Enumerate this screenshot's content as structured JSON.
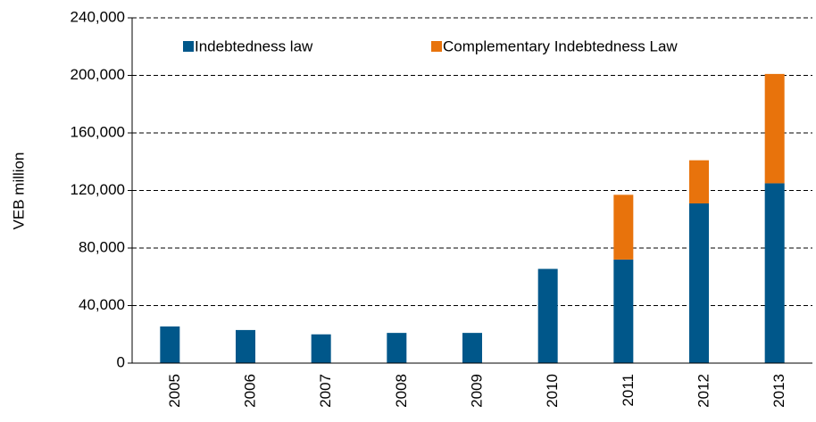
{
  "chart_data": {
    "type": "stacked_bar",
    "y_label": "VEB million",
    "categories": [
      "2005",
      "2006",
      "2007",
      "2008",
      "2009",
      "2010",
      "2011",
      "2012",
      "2013"
    ],
    "series": [
      {
        "name": "Indebtedness law",
        "color": "#00578a",
        "values": [
          25500,
          23000,
          20000,
          21000,
          21000,
          65500,
          72000,
          111000,
          125000
        ]
      },
      {
        "name": "Complementary Indebtedness Law",
        "color": "#e8730c",
        "values": [
          null,
          null,
          null,
          null,
          null,
          null,
          45000,
          30000,
          76000
        ]
      }
    ],
    "ylim": [
      0,
      240000
    ],
    "yticks": [
      0,
      {
        "value": 40000,
        "label": "40,000"
      },
      {
        "value": 80000,
        "label": "80,000"
      },
      {
        "value": 120000,
        "label": "120,000"
      },
      {
        "value": 160000,
        "label": "160,000"
      },
      {
        "value": 200000,
        "label": "200,000"
      },
      {
        "value": 240000,
        "label": "240,000"
      }
    ],
    "grid": true,
    "legend": "top"
  }
}
